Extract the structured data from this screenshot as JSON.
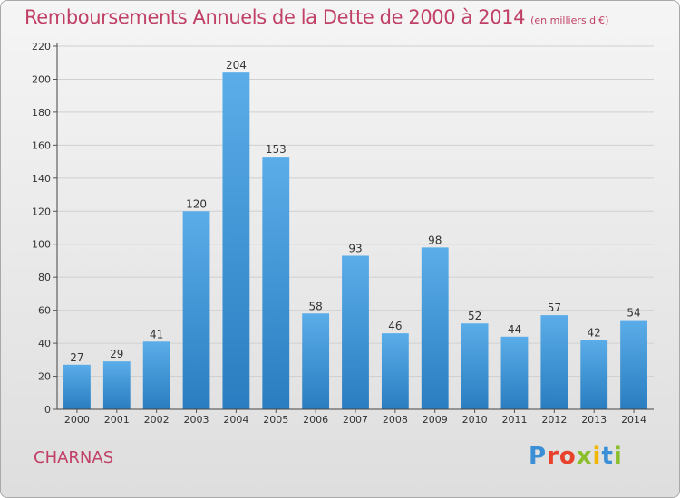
{
  "header": {
    "title": "Remboursements Annuels de la Dette de 2000 à 2014",
    "subtitle": "(en milliers d'€)"
  },
  "footer": {
    "commune": "CHARNAS",
    "logo_text": "Proxiti"
  },
  "colors": {
    "title": "#c04066",
    "bar_top": "#5aade8",
    "bar_bottom": "#2a7dc0",
    "grid": "#d0d0d0",
    "axis": "#333333"
  },
  "chart_data": {
    "type": "bar",
    "categories": [
      "2000",
      "2001",
      "2002",
      "2003",
      "2004",
      "2005",
      "2006",
      "2007",
      "2008",
      "2009",
      "2010",
      "2011",
      "2012",
      "2013",
      "2014"
    ],
    "values": [
      27,
      29,
      41,
      120,
      204,
      153,
      58,
      93,
      46,
      98,
      52,
      44,
      57,
      42,
      54
    ],
    "data_labels": [
      "27",
      "29",
      "41",
      "120",
      "204",
      "153",
      "58",
      "93",
      "46",
      "98",
      "52",
      "44",
      "57",
      "42",
      "54"
    ],
    "title": "Remboursements Annuels de la Dette de 2000 à 2014",
    "xlabel": "",
    "ylabel": "",
    "ylim": [
      0,
      220
    ],
    "yticks": [
      0,
      20,
      40,
      60,
      80,
      100,
      120,
      140,
      160,
      180,
      200,
      220
    ],
    "grid": true
  }
}
